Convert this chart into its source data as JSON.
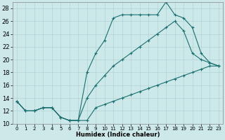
{
  "xlabel": "Humidex (Indice chaleur)",
  "background_color": "#cce8e8",
  "grid_color": "#b0d4d4",
  "line_color": "#1a7070",
  "xlim": [
    -0.5,
    23.5
  ],
  "ylim": [
    10,
    29
  ],
  "yticks": [
    10,
    12,
    14,
    16,
    18,
    20,
    22,
    24,
    26,
    28
  ],
  "xticks": [
    0,
    1,
    2,
    3,
    4,
    5,
    6,
    7,
    8,
    9,
    10,
    11,
    12,
    13,
    14,
    15,
    16,
    17,
    18,
    19,
    20,
    21,
    22,
    23
  ],
  "line1_x": [
    0,
    1,
    2,
    3,
    4,
    5,
    6,
    7,
    8,
    9,
    10,
    11,
    12,
    13,
    14,
    15,
    16,
    17,
    18,
    19,
    20,
    21,
    22,
    23
  ],
  "line1_y": [
    13.5,
    12.0,
    12.0,
    12.5,
    12.5,
    11.0,
    10.5,
    10.5,
    10.5,
    12.5,
    13.0,
    13.5,
    14.0,
    14.5,
    15.0,
    15.5,
    16.0,
    16.5,
    17.0,
    17.5,
    18.0,
    18.5,
    19.0,
    19.0
  ],
  "line2_x": [
    0,
    1,
    2,
    3,
    4,
    5,
    6,
    7,
    8,
    9,
    10,
    11,
    12,
    13,
    14,
    15,
    16,
    17,
    18,
    19,
    20,
    21,
    22,
    23
  ],
  "line2_y": [
    13.5,
    12.0,
    12.0,
    12.5,
    12.5,
    11.0,
    10.5,
    10.5,
    18.0,
    21.0,
    23.0,
    26.5,
    27.0,
    27.0,
    27.0,
    27.0,
    27.0,
    29.0,
    27.0,
    26.5,
    25.0,
    21.0,
    19.5,
    19.0
  ],
  "line3_x": [
    0,
    1,
    2,
    3,
    4,
    5,
    6,
    7,
    8,
    9,
    10,
    11,
    12,
    13,
    14,
    15,
    16,
    17,
    18,
    19,
    20,
    21,
    22,
    23
  ],
  "line3_y": [
    13.5,
    12.0,
    12.0,
    12.5,
    12.5,
    11.0,
    10.5,
    10.5,
    14.0,
    16.0,
    17.5,
    19.0,
    20.0,
    21.0,
    22.0,
    23.0,
    24.0,
    25.0,
    26.0,
    24.5,
    21.0,
    20.0,
    19.5,
    19.0
  ]
}
